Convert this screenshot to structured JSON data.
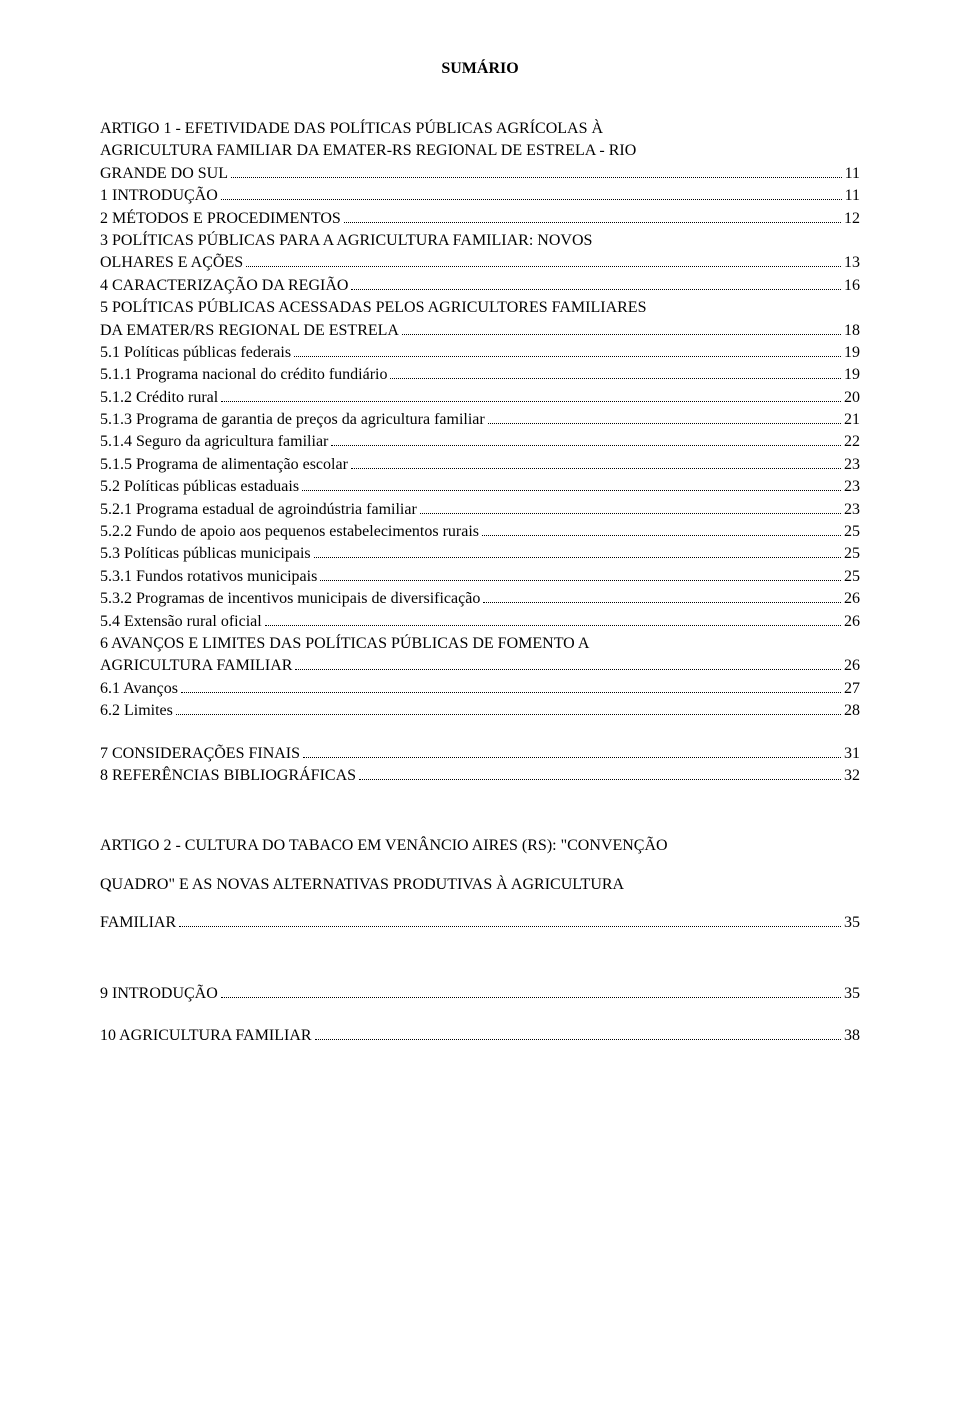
{
  "title": "SUMÁRIO",
  "toc": [
    {
      "type": "multiline",
      "lines": [
        "ARTIGO 1 - EFETIVIDADE DAS POLÍTICAS PÚBLICAS AGRÍCOLAS À",
        "AGRICULTURA FAMILIAR DA EMATER-RS REGIONAL DE ESTRELA - RIO"
      ],
      "last": "GRANDE DO SUL",
      "page": "11",
      "gapAfter": false
    },
    {
      "type": "line",
      "label": "1 INTRODUÇÃO",
      "page": "11",
      "gapAfter": false
    },
    {
      "type": "line",
      "label": "2 MÉTODOS E PROCEDIMENTOS",
      "page": "12",
      "gapAfter": false
    },
    {
      "type": "multiline",
      "lines": [
        "3 POLÍTICAS PÚBLICAS PARA A AGRICULTURA FAMILIAR: NOVOS"
      ],
      "last": "OLHARES E AÇÕES",
      "page": "13",
      "gapAfter": false
    },
    {
      "type": "line",
      "label": "4 CARACTERIZAÇÃO DA REGIÃO",
      "page": "16",
      "gapAfter": false
    },
    {
      "type": "multiline",
      "lines": [
        "5 POLÍTICAS PÚBLICAS ACESSADAS PELOS AGRICULTORES FAMILIARES"
      ],
      "last": "DA EMATER/RS REGIONAL DE ESTRELA",
      "page": "18",
      "gapAfter": false
    },
    {
      "type": "line",
      "label": "5.1 Políticas públicas federais",
      "page": "19",
      "gapAfter": false
    },
    {
      "type": "line",
      "label": "5.1.1 Programa nacional do crédito fundiário",
      "page": "19",
      "gapAfter": false
    },
    {
      "type": "line",
      "label": "5.1.2 Crédito rural",
      "page": "20",
      "gapAfter": false
    },
    {
      "type": "line",
      "label": "5.1.3 Programa de garantia de preços da agricultura familiar",
      "page": "21",
      "gapAfter": false
    },
    {
      "type": "line",
      "label": "5.1.4 Seguro da agricultura familiar",
      "page": "22",
      "gapAfter": false
    },
    {
      "type": "line",
      "label": "5.1.5 Programa de alimentação escolar",
      "page": "23",
      "gapAfter": false
    },
    {
      "type": "line",
      "label": "5.2 Políticas públicas estaduais",
      "page": "23",
      "gapAfter": false
    },
    {
      "type": "line",
      "label": "5.2.1 Programa estadual de agroindústria familiar",
      "page": "23",
      "gapAfter": false
    },
    {
      "type": "line",
      "label": "5.2.2 Fundo de apoio aos pequenos estabelecimentos rurais",
      "page": "25",
      "gapAfter": false
    },
    {
      "type": "line",
      "label": "5.3 Políticas públicas municipais",
      "page": "25",
      "gapAfter": false
    },
    {
      "type": "line",
      "label": "5.3.1 Fundos rotativos municipais",
      "page": "25",
      "gapAfter": false
    },
    {
      "type": "line",
      "label": "5.3.2 Programas de incentivos municipais de diversificação",
      "page": "26",
      "gapAfter": false
    },
    {
      "type": "line",
      "label": "5.4 Extensão rural oficial",
      "page": "26",
      "gapAfter": false
    },
    {
      "type": "multiline",
      "lines": [
        "6 AVANÇOS E LIMITES DAS POLÍTICAS PÚBLICAS DE FOMENTO A"
      ],
      "last": "AGRICULTURA FAMILIAR",
      "page": "26",
      "gapAfter": false
    },
    {
      "type": "line",
      "label": "6.1 Avanços",
      "page": "27",
      "gapAfter": false
    },
    {
      "type": "line",
      "label": "6.2 Limites",
      "page": "28",
      "gapAfter": true
    },
    {
      "type": "line",
      "label": "7 CONSIDERAÇÕES FINAIS",
      "page": "31",
      "gapAfter": false
    },
    {
      "type": "line",
      "label": "8 REFERÊNCIAS BIBLIOGRÁFICAS",
      "page": "32",
      "gapAfter": "large"
    },
    {
      "type": "multiline",
      "lines": [
        "ARTIGO 2 - CULTURA DO TABACO EM VENÂNCIO AIRES (RS): \"CONVENÇÃO",
        "QUADRO\" E AS NOVAS ALTERNATIVAS PRODUTIVAS À AGRICULTURA"
      ],
      "last": "FAMILIAR",
      "page": "35",
      "spaced": true,
      "gapAfter": "large"
    },
    {
      "type": "line",
      "label": "9 INTRODUÇÃO",
      "page": "35",
      "gapAfter": true
    },
    {
      "type": "line",
      "label": "10 AGRICULTURA FAMILIAR",
      "page": "38",
      "gapAfter": false
    }
  ]
}
